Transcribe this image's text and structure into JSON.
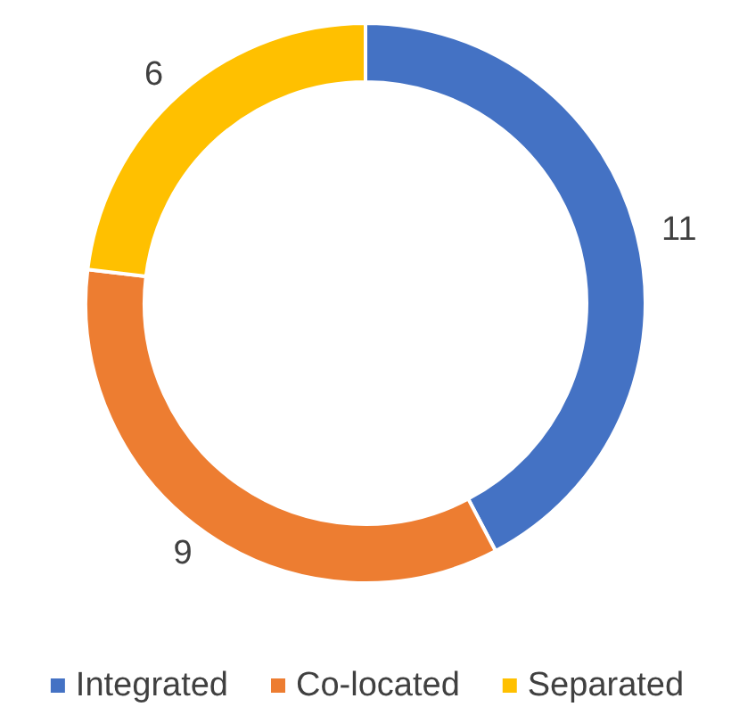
{
  "chart_data": {
    "type": "donut",
    "categories": [
      "Integrated",
      "Co-located",
      "Separated"
    ],
    "values": [
      11,
      9,
      6
    ],
    "colors": [
      "#4472c4",
      "#ed7d31",
      "#ffc000"
    ],
    "data_labels": true,
    "legend": "bottom"
  }
}
